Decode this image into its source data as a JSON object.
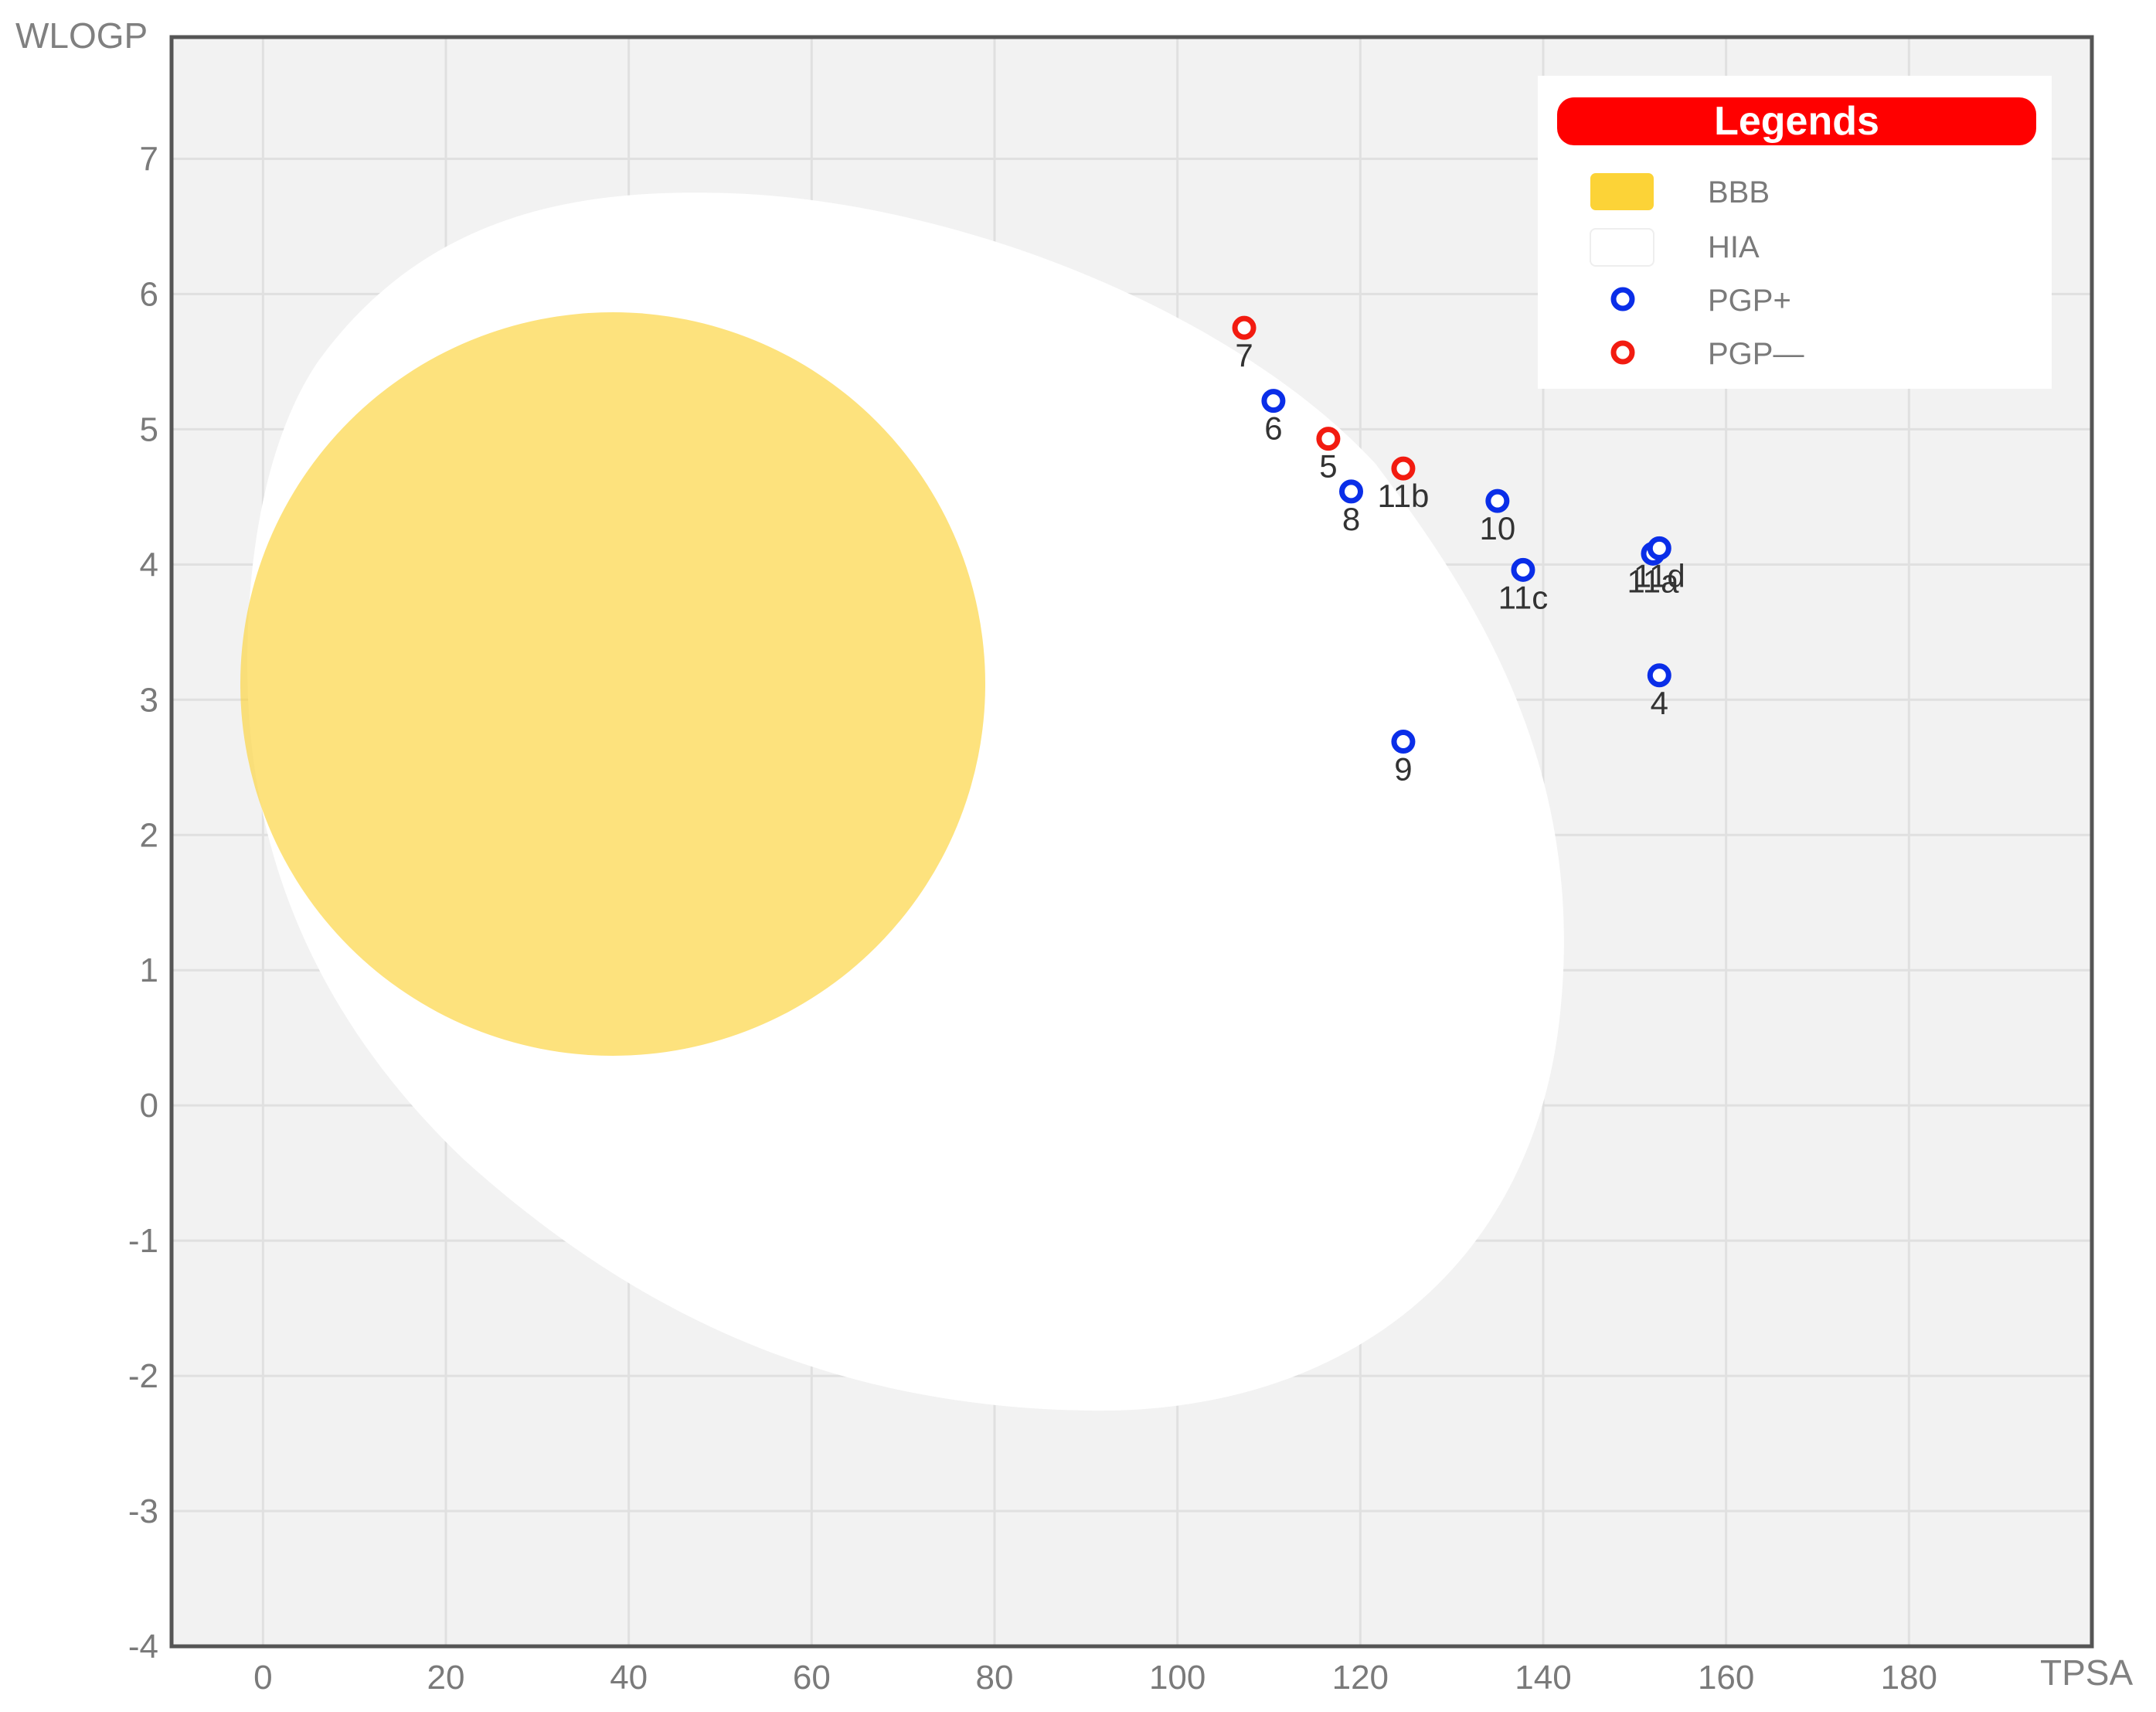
{
  "chart_data": {
    "type": "scatter",
    "title": "",
    "xlabel": "TPSA",
    "ylabel": "WLOGP",
    "xlim": [
      -10,
      200
    ],
    "ylim": [
      -4,
      7.9
    ],
    "xticks": [
      0,
      20,
      40,
      60,
      80,
      100,
      120,
      140,
      160,
      180
    ],
    "yticks": [
      -4,
      -3,
      -2,
      -1,
      0,
      1,
      2,
      3,
      4,
      5,
      6,
      7
    ],
    "grid": true,
    "legend_position": "top-right",
    "legend": {
      "title": "Legends",
      "items": [
        {
          "key": "bbb",
          "label": "BBB",
          "kind": "swatch",
          "color": "#fcd337"
        },
        {
          "key": "hia",
          "label": "HIA",
          "kind": "swatch",
          "color": "#ffffff"
        },
        {
          "key": "pgp_plus",
          "label": "PGP+",
          "kind": "marker",
          "color": "#0a2ee8"
        },
        {
          "key": "pgp_minus",
          "label": "PGP—",
          "kind": "marker",
          "color": "#f21b10"
        }
      ]
    },
    "regions": {
      "hia": {
        "label": "HIA",
        "color": "#ffffff"
      },
      "bbb": {
        "label": "BBB",
        "color": "#fcd337"
      }
    },
    "series": [
      {
        "name": "PGP+",
        "color": "#0a2ee8",
        "points": [
          {
            "label": "6",
            "x": 110.5,
            "y": 5.21
          },
          {
            "label": "8",
            "x": 119.0,
            "y": 4.54
          },
          {
            "label": "10",
            "x": 135.0,
            "y": 4.47
          },
          {
            "label": "11c",
            "x": 137.8,
            "y": 3.96
          },
          {
            "label": "11a",
            "x": 152.0,
            "y": 4.08
          },
          {
            "label": "11d",
            "x": 152.7,
            "y": 4.12
          },
          {
            "label": "4",
            "x": 152.7,
            "y": 3.18
          },
          {
            "label": "9",
            "x": 124.7,
            "y": 2.69
          }
        ]
      },
      {
        "name": "PGP—",
        "color": "#f21b10",
        "points": [
          {
            "label": "7",
            "x": 107.3,
            "y": 5.75
          },
          {
            "label": "5",
            "x": 116.5,
            "y": 4.93
          },
          {
            "label": "11b",
            "x": 124.7,
            "y": 4.71
          }
        ]
      }
    ]
  }
}
